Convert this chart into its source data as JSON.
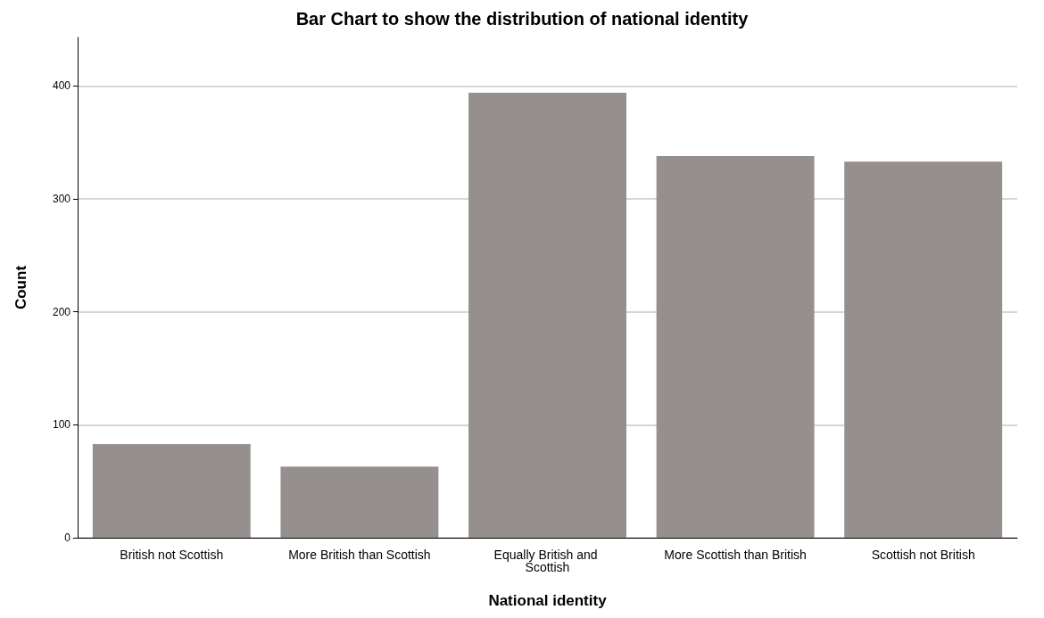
{
  "chart_data": {
    "type": "bar",
    "title": "Bar Chart to show the distribution of national identity",
    "xlabel": "National identity",
    "ylabel": "Count",
    "categories": [
      "British not Scottish",
      "More British than Scottish",
      "Equally British and Scottish",
      "More Scottish than British",
      "Scottish not British"
    ],
    "values": [
      83,
      63,
      394,
      338,
      333
    ],
    "color": "#958f8e",
    "ylim": [
      0,
      443
    ],
    "yticks": [
      0,
      100,
      200,
      300,
      400
    ],
    "grid": "y"
  }
}
